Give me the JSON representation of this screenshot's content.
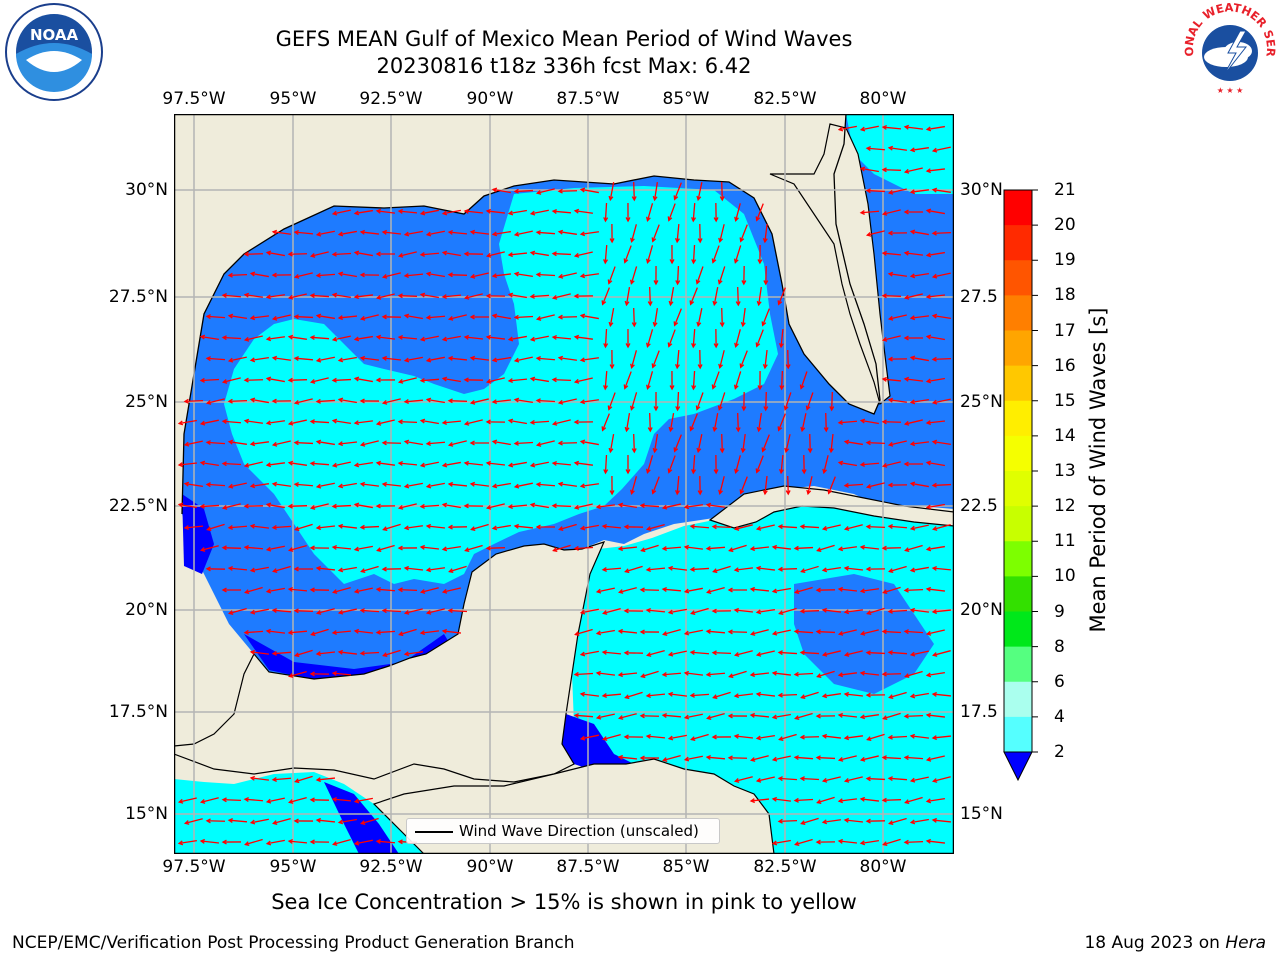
{
  "title": {
    "line1": "GEFS MEAN Gulf of Mexico Mean Period of Wind Waves",
    "line2": "20230816 t18z 336h fcst   Max: 6.42"
  },
  "axes": {
    "lon_ticks": [
      "97.5°W",
      "95°W",
      "92.5°W",
      "90°W",
      "87.5°W",
      "85°W",
      "82.5°W",
      "80°W"
    ],
    "lat_ticks_left": [
      "30°N",
      "27.5°N",
      "25°N",
      "22.5°N",
      "20°N",
      "17.5°N",
      "15°N"
    ],
    "lat_ticks_right": [
      "30°N",
      "27.5",
      "25°N",
      "22.5",
      "20°N",
      "17.5",
      "15°N"
    ]
  },
  "colorbar": {
    "title": "Mean Period of Wind Waves [s]",
    "labels": [
      "21",
      "20",
      "19",
      "18",
      "17",
      "16",
      "15",
      "14",
      "13",
      "12",
      "11",
      "10",
      "9",
      "8",
      "6",
      "4",
      "2"
    ],
    "colors": [
      "#ff0000",
      "#ff2a00",
      "#ff5500",
      "#ff7f00",
      "#ffa500",
      "#ffc800",
      "#ffee00",
      "#f5ff00",
      "#e0ff00",
      "#c8ff00",
      "#7dff00",
      "#33e000",
      "#00e81a",
      "#55ff80",
      "#aaffee",
      "#55ffff",
      "#00ffff",
      "#1e90ff"
    ],
    "under_color": "#0000ff"
  },
  "map_colors": {
    "land": "#efecdb",
    "coast": "#000000",
    "grid": "#b4b4b4",
    "band_2_4": "#1e7bff",
    "band_4_6": "#00ffff",
    "below_2": "#0000ff",
    "arrow": "#ff0000"
  },
  "legend": {
    "label": "Wind Wave Direction (unscaled)"
  },
  "ice_note": "Sea Ice Concentration > 15% is shown in pink to yellow",
  "footer": {
    "left": "NCEP/EMC/Verification Post Processing Product Generation Branch",
    "right_date": "18 Aug 2023 on ",
    "right_host": "Hera"
  },
  "logos": {
    "noaa": "NOAA",
    "nws": "NATIONAL WEATHER SERVICE"
  }
}
